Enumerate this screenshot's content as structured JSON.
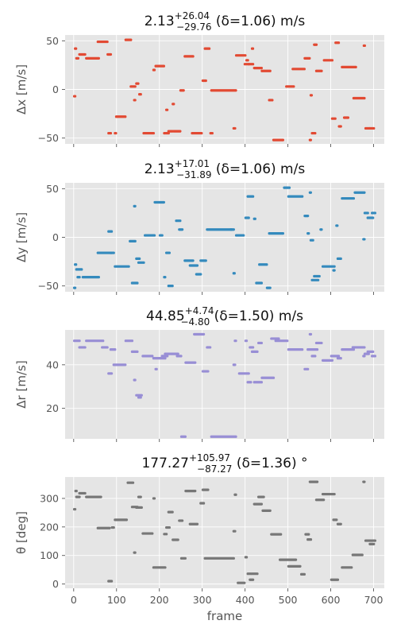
{
  "chart_data": [
    {
      "type": "scatter",
      "title": {
        "main": "2.13",
        "sup": "+26.04",
        "sub": "−29.76",
        "rest": " (δ=1.06) m/s"
      },
      "ylabel": "Δx [m/s]",
      "xlabel": "",
      "xlim": [
        -20,
        725
      ],
      "ylim": [
        -56,
        56
      ],
      "yticks": [
        -50,
        0,
        50
      ],
      "ytick_labels": [
        "−50",
        "0",
        "50"
      ],
      "xticks": [
        0,
        100,
        200,
        300,
        400,
        500,
        600,
        700
      ],
      "xtick_labels": [],
      "grid": true,
      "color": "#e24a33",
      "segments": [
        [
          0,
          3,
          -7
        ],
        [
          2,
          4,
          42
        ],
        [
          5,
          12,
          32
        ],
        [
          12,
          28,
          36
        ],
        [
          28,
          60,
          32
        ],
        [
          55,
          80,
          49
        ],
        [
          78,
          88,
          36
        ],
        [
          80,
          88,
          -45
        ],
        [
          95,
          100,
          -45
        ],
        [
          98,
          122,
          -28
        ],
        [
          120,
          135,
          51
        ],
        [
          132,
          145,
          3
        ],
        [
          140,
          142,
          -11
        ],
        [
          145,
          152,
          6
        ],
        [
          152,
          158,
          -5
        ],
        [
          162,
          188,
          -45
        ],
        [
          185,
          190,
          20
        ],
        [
          190,
          212,
          24
        ],
        [
          210,
          223,
          -45
        ],
        [
          215,
          217,
          -21
        ],
        [
          220,
          232,
          -43
        ],
        [
          230,
          235,
          -15
        ],
        [
          232,
          250,
          -43
        ],
        [
          248,
          258,
          -1
        ],
        [
          258,
          280,
          34
        ],
        [
          275,
          300,
          -45
        ],
        [
          300,
          310,
          9
        ],
        [
          305,
          318,
          42
        ],
        [
          318,
          325,
          -45
        ],
        [
          320,
          380,
          -1
        ],
        [
          372,
          378,
          -40
        ],
        [
          378,
          402,
          35
        ],
        [
          398,
          410,
          26
        ],
        [
          402,
          408,
          30
        ],
        [
          408,
          420,
          26
        ],
        [
          415,
          418,
          42
        ],
        [
          420,
          440,
          22
        ],
        [
          438,
          460,
          19
        ],
        [
          455,
          465,
          -11
        ],
        [
          465,
          490,
          -52
        ],
        [
          495,
          515,
          3
        ],
        [
          510,
          540,
          21
        ],
        [
          538,
          552,
          32
        ],
        [
          550,
          552,
          -52
        ],
        [
          552,
          555,
          -6
        ],
        [
          555,
          565,
          -45
        ],
        [
          560,
          568,
          46
        ],
        [
          565,
          580,
          19
        ],
        [
          583,
          605,
          30
        ],
        [
          602,
          612,
          -30
        ],
        [
          610,
          620,
          48
        ],
        [
          618,
          625,
          -38
        ],
        [
          625,
          660,
          23
        ],
        [
          630,
          642,
          -29
        ],
        [
          652,
          680,
          -9
        ],
        [
          676,
          680,
          45
        ],
        [
          680,
          692,
          -40
        ],
        [
          690,
          702,
          -40
        ]
      ]
    },
    {
      "type": "scatter",
      "title": {
        "main": "2.13",
        "sup": "+17.01",
        "sub": "−31.89",
        "rest": " (δ=1.06) m/s"
      },
      "ylabel": "Δy [m/s]",
      "xlabel": "",
      "xlim": [
        -20,
        725
      ],
      "ylim": [
        -56,
        56
      ],
      "yticks": [
        -50,
        0,
        50
      ],
      "ytick_labels": [
        "−50",
        "0",
        "50"
      ],
      "xticks": [
        0,
        100,
        200,
        300,
        400,
        500,
        600,
        700
      ],
      "xtick_labels": [],
      "grid": true,
      "color": "#348abd",
      "segments": [
        [
          0,
          3,
          -52
        ],
        [
          2,
          5,
          -28
        ],
        [
          5,
          20,
          -33
        ],
        [
          8,
          15,
          -41
        ],
        [
          20,
          60,
          -41
        ],
        [
          55,
          90,
          -16
        ],
        [
          80,
          90,
          6
        ],
        [
          85,
          95,
          -16
        ],
        [
          95,
          130,
          -30
        ],
        [
          130,
          145,
          -4
        ],
        [
          135,
          150,
          -47
        ],
        [
          140,
          142,
          32
        ],
        [
          145,
          155,
          -22
        ],
        [
          150,
          165,
          -26
        ],
        [
          165,
          190,
          2
        ],
        [
          188,
          212,
          36
        ],
        [
          200,
          208,
          2
        ],
        [
          210,
          212,
          -41
        ],
        [
          215,
          225,
          -16
        ],
        [
          220,
          232,
          -50
        ],
        [
          238,
          250,
          17
        ],
        [
          245,
          255,
          8
        ],
        [
          258,
          280,
          -24
        ],
        [
          270,
          290,
          -29
        ],
        [
          285,
          298,
          -38
        ],
        [
          295,
          310,
          -24
        ],
        [
          310,
          370,
          8
        ],
        [
          365,
          375,
          8
        ],
        [
          372,
          376,
          -37
        ],
        [
          378,
          398,
          2
        ],
        [
          400,
          410,
          20
        ],
        [
          405,
          420,
          42
        ],
        [
          420,
          425,
          19
        ],
        [
          425,
          440,
          -47
        ],
        [
          432,
          452,
          -28
        ],
        [
          450,
          460,
          -52
        ],
        [
          455,
          490,
          4
        ],
        [
          490,
          505,
          51
        ],
        [
          500,
          535,
          42
        ],
        [
          538,
          548,
          22
        ],
        [
          545,
          550,
          4
        ],
        [
          550,
          552,
          46
        ],
        [
          552,
          560,
          -3
        ],
        [
          555,
          572,
          -44
        ],
        [
          560,
          575,
          -40
        ],
        [
          575,
          580,
          8
        ],
        [
          580,
          610,
          -30
        ],
        [
          605,
          610,
          -34
        ],
        [
          612,
          615,
          12
        ],
        [
          615,
          625,
          -22
        ],
        [
          625,
          655,
          40
        ],
        [
          655,
          680,
          46
        ],
        [
          675,
          680,
          -2
        ],
        [
          678,
          688,
          25
        ],
        [
          685,
          700,
          20
        ],
        [
          695,
          705,
          25
        ]
      ]
    },
    {
      "type": "scatter",
      "title": {
        "main": "44.85",
        "sup": "+4.74",
        "sub": "−4.80",
        "rest": " (δ=1.50) m/s"
      },
      "ylabel": "Δr [m/s]",
      "xlabel": "",
      "xlim": [
        -20,
        725
      ],
      "ylim": [
        6,
        56
      ],
      "yticks": [
        20,
        40
      ],
      "ytick_labels": [
        "20",
        "40"
      ],
      "xticks": [
        0,
        100,
        200,
        300,
        400,
        500,
        600,
        700
      ],
      "xtick_labels": [],
      "grid": true,
      "color": "#988ed5",
      "segments": [
        [
          0,
          15,
          51
        ],
        [
          12,
          28,
          48
        ],
        [
          28,
          70,
          51
        ],
        [
          65,
          80,
          48
        ],
        [
          80,
          90,
          36
        ],
        [
          85,
          98,
          47
        ],
        [
          92,
          122,
          40
        ],
        [
          120,
          138,
          51
        ],
        [
          135,
          150,
          46
        ],
        [
          140,
          142,
          33
        ],
        [
          145,
          160,
          26
        ],
        [
          150,
          158,
          25
        ],
        [
          160,
          185,
          44
        ],
        [
          185,
          215,
          43
        ],
        [
          190,
          195,
          38
        ],
        [
          205,
          220,
          44
        ],
        [
          212,
          225,
          45
        ],
        [
          225,
          245,
          45
        ],
        [
          240,
          252,
          44
        ],
        [
          250,
          262,
          7
        ],
        [
          260,
          285,
          41
        ],
        [
          280,
          305,
          54
        ],
        [
          300,
          315,
          37
        ],
        [
          310,
          320,
          48
        ],
        [
          320,
          380,
          7
        ],
        [
          372,
          378,
          40
        ],
        [
          375,
          380,
          51
        ],
        [
          385,
          410,
          36
        ],
        [
          400,
          405,
          51
        ],
        [
          405,
          415,
          32
        ],
        [
          410,
          420,
          48
        ],
        [
          415,
          430,
          46
        ],
        [
          420,
          440,
          32
        ],
        [
          430,
          440,
          50
        ],
        [
          438,
          468,
          34
        ],
        [
          460,
          480,
          52
        ],
        [
          470,
          500,
          51
        ],
        [
          500,
          535,
          47
        ],
        [
          538,
          548,
          38
        ],
        [
          545,
          570,
          47
        ],
        [
          550,
          555,
          54
        ],
        [
          555,
          565,
          44
        ],
        [
          565,
          580,
          50
        ],
        [
          580,
          605,
          42
        ],
        [
          600,
          620,
          44
        ],
        [
          615,
          625,
          43
        ],
        [
          625,
          655,
          47
        ],
        [
          650,
          680,
          48
        ],
        [
          675,
          680,
          44
        ],
        [
          678,
          690,
          45
        ],
        [
          685,
          700,
          46
        ],
        [
          695,
          705,
          44
        ]
      ]
    },
    {
      "type": "scatter",
      "title": {
        "main": "177.27",
        "sup": "+105.97",
        "sub": "−87.27",
        "rest": " (δ=1.36) °"
      },
      "ylabel": "θ [deg]",
      "xlabel": "frame",
      "xlim": [
        -20,
        725
      ],
      "ylim": [
        -15,
        375
      ],
      "yticks": [
        0,
        100,
        200,
        300
      ],
      "ytick_labels": [
        "0",
        "100",
        "200",
        "300"
      ],
      "xticks": [
        0,
        100,
        200,
        300,
        400,
        500,
        600,
        700
      ],
      "xtick_labels": [
        "0",
        "100",
        "200",
        "300",
        "400",
        "500",
        "600",
        "700"
      ],
      "grid": true,
      "color": "#777777",
      "segments": [
        [
          0,
          3,
          262
        ],
        [
          3,
          8,
          326
        ],
        [
          5,
          15,
          305
        ],
        [
          12,
          28,
          318
        ],
        [
          28,
          65,
          305
        ],
        [
          55,
          85,
          196
        ],
        [
          80,
          90,
          10
        ],
        [
          88,
          95,
          198
        ],
        [
          95,
          125,
          225
        ],
        [
          125,
          140,
          355
        ],
        [
          135,
          150,
          270
        ],
        [
          140,
          142,
          110
        ],
        [
          145,
          160,
          268
        ],
        [
          150,
          158,
          305
        ],
        [
          160,
          185,
          177
        ],
        [
          185,
          190,
          300
        ],
        [
          185,
          215,
          58
        ],
        [
          210,
          218,
          175
        ],
        [
          215,
          225,
          198
        ],
        [
          220,
          232,
          252
        ],
        [
          230,
          245,
          155
        ],
        [
          245,
          255,
          222
        ],
        [
          250,
          262,
          90
        ],
        [
          260,
          285,
          326
        ],
        [
          270,
          290,
          210
        ],
        [
          295,
          305,
          283
        ],
        [
          300,
          315,
          330
        ],
        [
          305,
          375,
          90
        ],
        [
          372,
          378,
          185
        ],
        [
          375,
          380,
          313
        ],
        [
          382,
          400,
          4
        ],
        [
          400,
          405,
          94
        ],
        [
          405,
          415,
          36
        ],
        [
          410,
          420,
          15
        ],
        [
          415,
          430,
          36
        ],
        [
          420,
          440,
          280
        ],
        [
          430,
          445,
          305
        ],
        [
          440,
          460,
          257
        ],
        [
          460,
          485,
          174
        ],
        [
          480,
          520,
          85
        ],
        [
          500,
          530,
          62
        ],
        [
          530,
          540,
          34
        ],
        [
          540,
          550,
          174
        ],
        [
          545,
          555,
          156
        ],
        [
          550,
          570,
          358
        ],
        [
          565,
          585,
          295
        ],
        [
          580,
          610,
          315
        ],
        [
          600,
          618,
          15
        ],
        [
          605,
          615,
          225
        ],
        [
          615,
          625,
          210
        ],
        [
          625,
          650,
          58
        ],
        [
          650,
          675,
          102
        ],
        [
          675,
          680,
          358
        ],
        [
          680,
          695,
          152
        ],
        [
          690,
          702,
          140
        ],
        [
          695,
          705,
          152
        ]
      ]
    }
  ]
}
